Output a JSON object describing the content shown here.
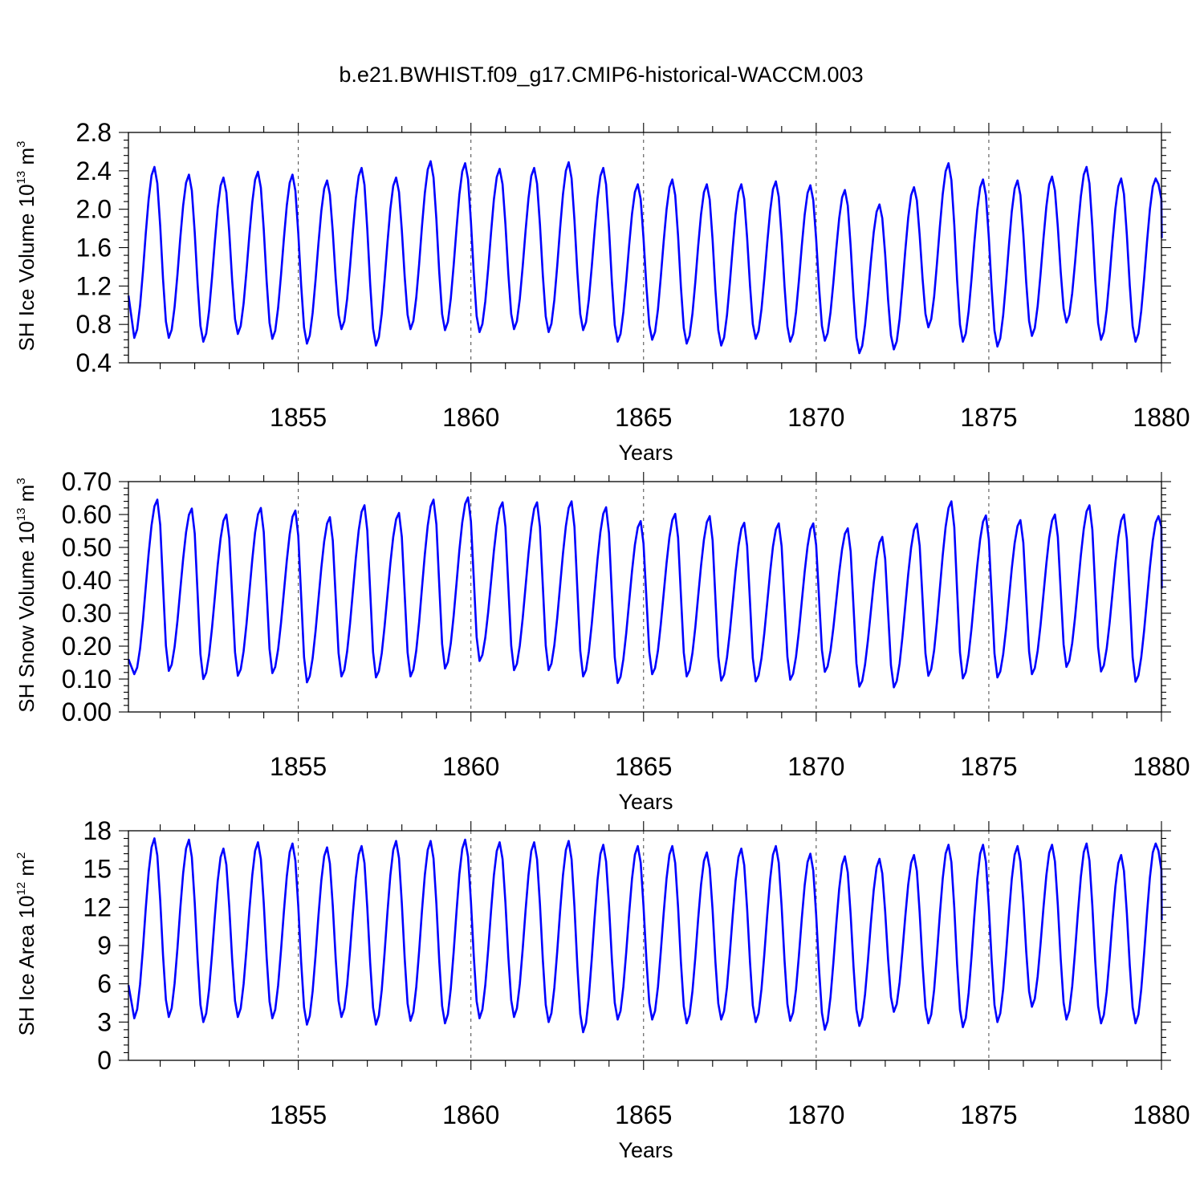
{
  "title": "b.e21.BWHIST.f09_g17.CMIP6-historical-WACCM.003",
  "chart_data": [
    {
      "type": "line",
      "name": "ice-volume",
      "ylabel": {
        "prefix": "SH Ice Volume 10",
        "exp": "13",
        "unit": " m",
        "unit_exp": "3"
      },
      "xlabel": "Years",
      "xlim": [
        1850.08,
        1880.0
      ],
      "ylim": [
        0.4,
        2.8
      ],
      "yticks": [
        0.4,
        0.8,
        1.2,
        1.6,
        2.0,
        2.4,
        2.8
      ],
      "ytick_labels": [
        "0.4",
        "0.8",
        "1.2",
        "1.6",
        "2.0",
        "2.4",
        "2.8"
      ],
      "xticks": [
        1855,
        1860,
        1865,
        1870,
        1875,
        1880
      ],
      "xtick_labels": [
        "1855",
        "1860",
        "1865",
        "1870",
        "1875",
        "1880"
      ],
      "grid_x": [
        1855,
        1860,
        1865,
        1870,
        1875
      ],
      "series": [
        {
          "name": "SH Ice Volume",
          "color": "#0000ff",
          "x_start": 1850.083,
          "step": 0.08333,
          "min_month": 2,
          "max_month": 9,
          "min_offset": 0.0,
          "max_offset": 0.0,
          "annual_max": [
            2.44,
            2.36,
            2.33,
            2.39,
            2.36,
            2.3,
            2.43,
            2.33,
            2.5,
            2.48,
            2.42,
            2.43,
            2.49,
            2.43,
            2.26,
            2.31,
            2.26,
            2.26,
            2.29,
            2.25,
            2.2,
            2.05,
            2.23,
            2.48,
            2.31,
            2.3,
            2.34,
            2.44,
            2.32,
            2.32
          ],
          "annual_min": [
            0.66,
            0.66,
            0.62,
            0.7,
            0.65,
            0.6,
            0.75,
            0.58,
            0.75,
            0.74,
            0.72,
            0.75,
            0.72,
            0.74,
            0.62,
            0.64,
            0.6,
            0.58,
            0.65,
            0.62,
            0.63,
            0.5,
            0.54,
            0.77,
            0.62,
            0.57,
            0.68,
            0.82,
            0.64,
            0.62
          ],
          "first_value": 1.1,
          "last_value": 1.7
        }
      ]
    },
    {
      "type": "line",
      "name": "snow-volume",
      "ylabel": {
        "prefix": "SH Snow Volume 10",
        "exp": "13",
        "unit": " m",
        "unit_exp": "3"
      },
      "xlabel": "Years",
      "xlim": [
        1850.08,
        1880.0
      ],
      "ylim": [
        0.0,
        0.7
      ],
      "yticks": [
        0.0,
        0.1,
        0.2,
        0.3,
        0.4,
        0.5,
        0.6,
        0.7
      ],
      "ytick_labels": [
        "0.00",
        "0.10",
        "0.20",
        "0.30",
        "0.40",
        "0.50",
        "0.60",
        "0.70"
      ],
      "xticks": [
        1855,
        1860,
        1865,
        1870,
        1875,
        1880
      ],
      "xtick_labels": [
        "1855",
        "1860",
        "1865",
        "1870",
        "1875",
        "1880"
      ],
      "grid_x": [
        1855,
        1860,
        1865,
        1870,
        1875
      ],
      "series": [
        {
          "name": "SH Snow Volume",
          "color": "#0000ff",
          "x_start": 1850.083,
          "step": 0.08333,
          "min_month": 2,
          "max_month": 10,
          "min_offset": 0.0,
          "max_offset": 0.0,
          "annual_max": [
            0.645,
            0.618,
            0.6,
            0.62,
            0.612,
            0.592,
            0.628,
            0.605,
            0.645,
            0.652,
            0.637,
            0.637,
            0.64,
            0.622,
            0.58,
            0.602,
            0.595,
            0.575,
            0.573,
            0.573,
            0.558,
            0.532,
            0.572,
            0.64,
            0.597,
            0.583,
            0.6,
            0.628,
            0.6,
            0.595
          ],
          "annual_min": [
            0.115,
            0.125,
            0.1,
            0.11,
            0.118,
            0.09,
            0.108,
            0.105,
            0.108,
            0.132,
            0.155,
            0.127,
            0.127,
            0.108,
            0.088,
            0.115,
            0.108,
            0.095,
            0.093,
            0.098,
            0.122,
            0.077,
            0.075,
            0.11,
            0.102,
            0.105,
            0.115,
            0.137,
            0.123,
            0.092
          ],
          "first_value": 0.16,
          "last_value": 0.375
        }
      ]
    },
    {
      "type": "line",
      "name": "ice-area",
      "ylabel": {
        "prefix": "SH Ice Area 10",
        "exp": "12",
        "unit": " m",
        "unit_exp": "2"
      },
      "xlabel": "Years",
      "xlim": [
        1850.08,
        1880.0
      ],
      "ylim": [
        0,
        18
      ],
      "yticks": [
        0,
        3,
        6,
        9,
        12,
        15,
        18
      ],
      "ytick_labels": [
        "0",
        "3",
        "6",
        "9",
        "12",
        "15",
        "18"
      ],
      "xticks": [
        1855,
        1860,
        1865,
        1870,
        1875,
        1880
      ],
      "xtick_labels": [
        "1855",
        "1860",
        "1865",
        "1870",
        "1875",
        "1880"
      ],
      "grid_x": [
        1855,
        1860,
        1865,
        1870,
        1875
      ],
      "series": [
        {
          "name": "SH Ice Area",
          "color": "#0000ff",
          "x_start": 1850.083,
          "step": 0.08333,
          "min_month": 2,
          "max_month": 9,
          "min_offset": 0.0,
          "max_offset": 0.0,
          "annual_max": [
            17.4,
            17.3,
            16.6,
            17.1,
            17.0,
            16.7,
            16.8,
            17.2,
            17.2,
            17.3,
            17.1,
            17.1,
            17.2,
            16.9,
            16.8,
            16.8,
            16.3,
            16.6,
            16.8,
            16.2,
            16.0,
            15.8,
            16.1,
            16.9,
            16.9,
            16.8,
            16.9,
            17.0,
            16.1,
            17.0
          ],
          "annual_min": [
            3.3,
            3.4,
            3.0,
            3.4,
            3.3,
            2.8,
            3.4,
            2.8,
            3.1,
            2.9,
            3.3,
            3.4,
            3.0,
            2.2,
            3.2,
            3.2,
            2.9,
            3.2,
            3.0,
            3.1,
            2.4,
            2.7,
            3.8,
            2.9,
            2.6,
            3.0,
            4.2,
            3.2,
            2.9,
            2.9
          ],
          "first_value": 5.9,
          "last_value": 11.0
        }
      ]
    }
  ]
}
